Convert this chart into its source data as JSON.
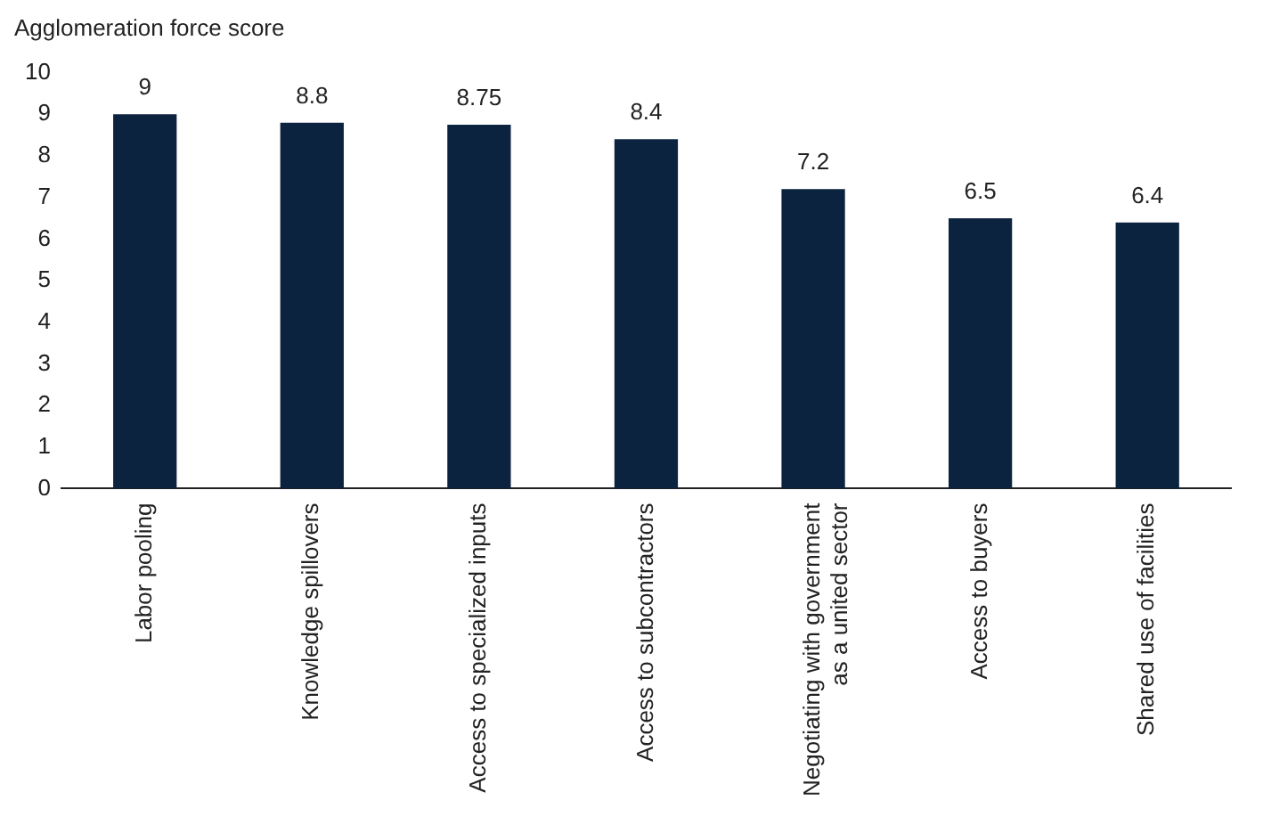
{
  "chart_data": {
    "type": "bar",
    "ylabel": "Agglomeration force score",
    "categories": [
      "Labor pooling",
      "Knowledge spillovers",
      "Access to specialized inputs",
      "Access to subcontractors",
      "Negotiating with government\nas a united sector",
      "Access to buyers",
      "Shared use of facilities"
    ],
    "values": [
      9,
      8.8,
      8.75,
      8.4,
      7.2,
      6.5,
      6.4
    ],
    "color": "#0c2340",
    "ylim": [
      0,
      10
    ],
    "yticks": [
      0,
      1,
      2,
      3,
      4,
      5,
      6,
      7,
      8,
      9,
      10
    ],
    "grid": false,
    "legend": false,
    "data_labels": true
  }
}
